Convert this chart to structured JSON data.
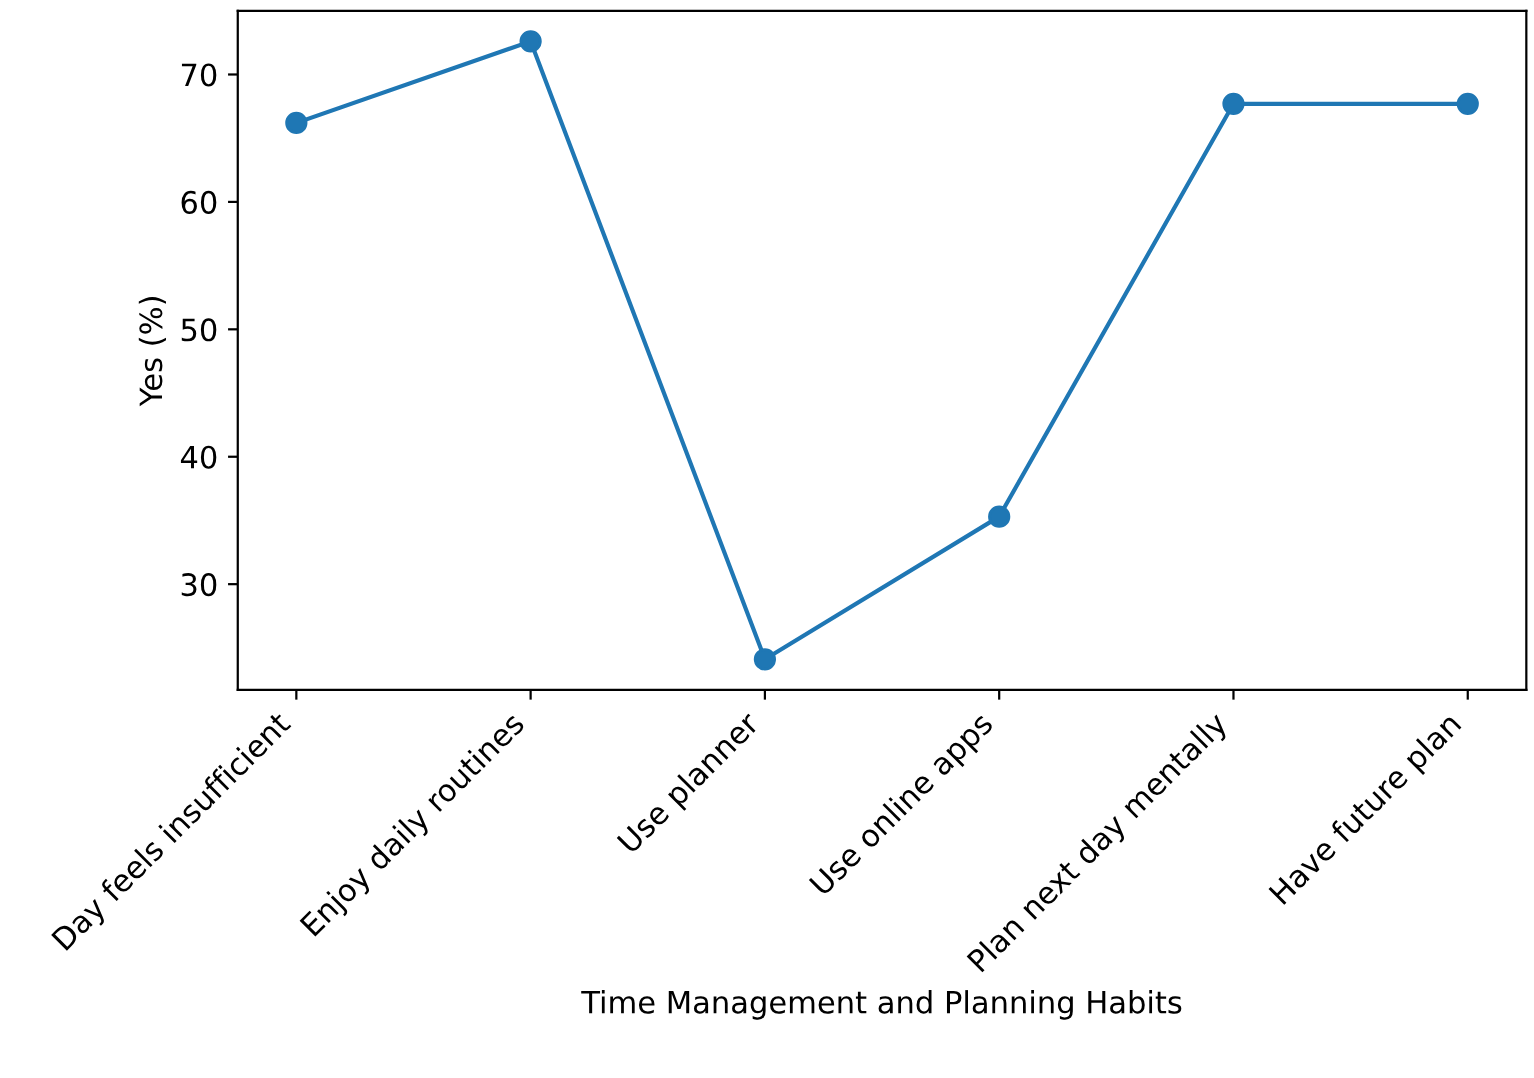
{
  "chart_data": {
    "type": "line",
    "xlabel": "Time Management and Planning Habits",
    "ylabel": "Yes (%)",
    "categories": [
      "Day feels insufficient",
      "Enjoy daily routines",
      "Use planner",
      "Use online apps",
      "Plan next day mentally",
      "Have future plan"
    ],
    "series": [
      {
        "color": "#1f77b4",
        "values": [
          66.2,
          72.6,
          24.1,
          35.3,
          67.7,
          67.7
        ]
      }
    ],
    "ylim": [
      21.7,
      75.0
    ],
    "yticks": [
      30,
      40,
      50,
      60,
      70
    ],
    "marker": "circle",
    "line_style": "solid",
    "grid": false,
    "legend": false
  }
}
